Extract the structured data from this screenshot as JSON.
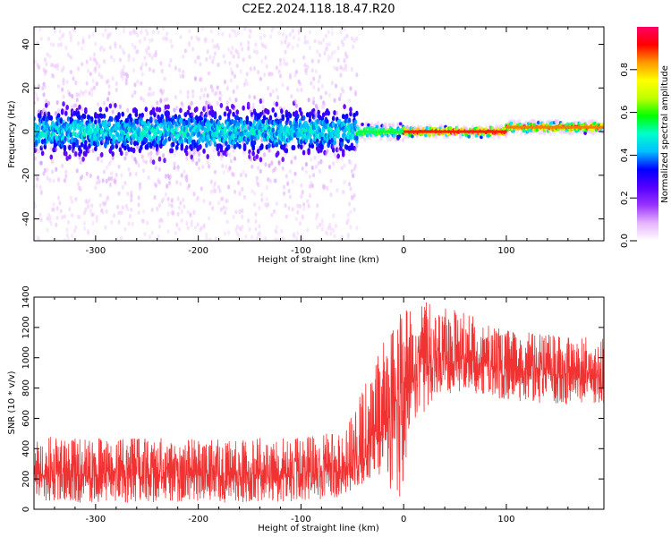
{
  "figure": {
    "title": "C2E2.2024.118.18.47.R20"
  },
  "colors": {
    "snr_line": "#f03232",
    "axes": "#000000"
  },
  "chart_data": [
    {
      "type": "heatmap",
      "name": "spectrogram",
      "xlabel": "Height of straight line (km)",
      "ylabel": "Frequency (Hz)",
      "xlim": [
        -360,
        195
      ],
      "ylim": [
        -50,
        48
      ],
      "xticks": [
        -300,
        -200,
        -100,
        0,
        100
      ],
      "yticks": [
        -40,
        -20,
        0,
        20,
        40
      ],
      "colorbar": {
        "label": "Normalized spectral amplitude",
        "range": [
          0,
          1
        ],
        "ticks": [
          0.0,
          0.2,
          0.4,
          0.6,
          0.8
        ],
        "tick_labels": [
          "0.0",
          "0.2",
          "0.4",
          "0.6",
          "0.8"
        ],
        "colormap": [
          "#ffffff",
          "#e6b3ff",
          "#9933ff",
          "#5500ff",
          "#0000ff",
          "#00bfff",
          "#00ffcc",
          "#00ff00",
          "#bfff00",
          "#ffff00",
          "#ff9900",
          "#ff0000",
          "#ff0066"
        ]
      },
      "regions": [
        {
          "x_range": [
            -360,
            -45
          ],
          "freq_center": 0,
          "core_halfwidth": 8,
          "scatter_halfwidth": 50,
          "peak_amplitude": 0.35
        },
        {
          "x_range": [
            -45,
            0
          ],
          "freq_center": 0,
          "core_halfwidth": 2,
          "scatter_halfwidth": 4,
          "peak_amplitude": 0.55
        },
        {
          "x_range": [
            0,
            100
          ],
          "freq_center": 0,
          "core_halfwidth": 1.5,
          "scatter_halfwidth": 2.5,
          "peak_amplitude": 0.9
        },
        {
          "x_range": [
            100,
            195
          ],
          "freq_center": 2,
          "core_halfwidth": 1.5,
          "scatter_halfwidth": 3,
          "peak_amplitude": 0.85
        }
      ]
    },
    {
      "type": "line",
      "name": "snr",
      "xlabel": "Height of straight line (km)",
      "ylabel": "SNR (10 * v/v)",
      "xlim": [
        -360,
        195
      ],
      "ylim": [
        0,
        1400
      ],
      "xticks": [
        -300,
        -200,
        -100,
        0,
        100
      ],
      "yticks": [
        0,
        200,
        400,
        600,
        800,
        1000,
        1200,
        1400
      ],
      "series": [
        {
          "name": "SNR",
          "x": [
            -360,
            -300,
            -200,
            -100,
            -60,
            -40,
            -20,
            -5,
            10,
            30,
            60,
            100,
            150,
            195
          ],
          "mean": [
            230,
            230,
            225,
            230,
            260,
            380,
            550,
            750,
            950,
            1000,
            980,
            920,
            890,
            890
          ],
          "min": [
            50,
            40,
            40,
            50,
            80,
            150,
            200,
            50,
            500,
            750,
            780,
            720,
            680,
            690
          ],
          "max": [
            480,
            480,
            470,
            470,
            520,
            800,
            1100,
            1300,
            1400,
            1350,
            1300,
            1180,
            1150,
            1150
          ]
        }
      ]
    }
  ]
}
